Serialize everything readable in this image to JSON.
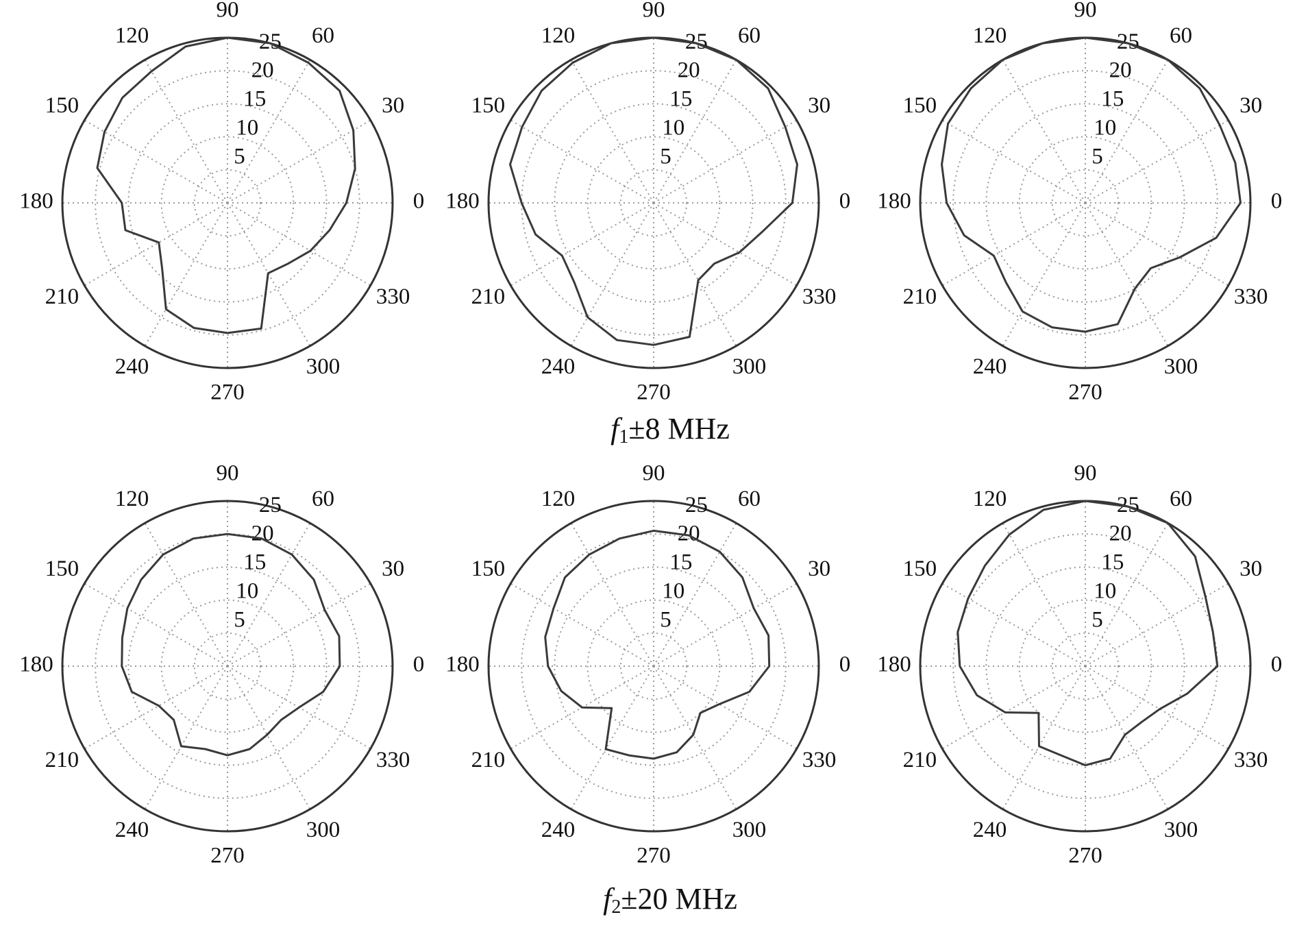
{
  "chart_data": [
    {
      "type": "polar",
      "color": "#3a3a3a",
      "grid": true,
      "rlim": [
        0,
        25
      ],
      "rticks": [
        5,
        10,
        15,
        20,
        25
      ],
      "thetaticks": [
        0,
        30,
        60,
        90,
        120,
        150,
        180,
        210,
        240,
        270,
        300,
        330
      ],
      "theta": [
        0,
        15,
        30,
        45,
        60,
        75,
        90,
        105,
        120,
        135,
        150,
        165,
        180,
        195,
        210,
        225,
        240,
        255,
        270,
        285,
        300,
        315,
        330,
        345
      ],
      "r": [
        18,
        20,
        22,
        24,
        24.5,
        25,
        25,
        24.5,
        23,
        22.5,
        21.5,
        20.4,
        16,
        16,
        12,
        14,
        18.6,
        19.6,
        19.7,
        19.7,
        12.3,
        13,
        14.5,
        16
      ]
    },
    {
      "type": "polar",
      "color": "#3a3a3a",
      "grid": true,
      "rlim": [
        0,
        25
      ],
      "rticks": [
        5,
        10,
        15,
        20,
        25
      ],
      "thetaticks": [
        0,
        30,
        60,
        90,
        120,
        150,
        180,
        210,
        240,
        270,
        300,
        330
      ],
      "theta": [
        0,
        15,
        30,
        45,
        60,
        75,
        90,
        105,
        120,
        135,
        150,
        165,
        180,
        195,
        210,
        225,
        240,
        255,
        270,
        285,
        300,
        315,
        330,
        345
      ],
      "r": [
        21,
        22.5,
        23,
        24.5,
        25,
        25,
        25,
        25,
        24.5,
        24,
        23,
        22.5,
        20,
        18.5,
        16,
        17,
        20,
        21.5,
        21.5,
        21,
        13.5,
        13,
        15,
        17
      ]
    },
    {
      "type": "polar",
      "color": "#3a3a3a",
      "grid": true,
      "rlim": [
        0,
        25
      ],
      "rticks": [
        5,
        10,
        15,
        20,
        25
      ],
      "thetaticks": [
        0,
        30,
        60,
        90,
        120,
        150,
        180,
        210,
        240,
        270,
        300,
        330
      ],
      "theta": [
        0,
        15,
        30,
        45,
        60,
        75,
        90,
        105,
        120,
        135,
        150,
        165,
        180,
        195,
        210,
        225,
        240,
        255,
        270,
        285,
        300,
        315,
        330,
        345
      ],
      "r": [
        23.5,
        23.5,
        23.5,
        24.5,
        25,
        25,
        25,
        25,
        25,
        24.5,
        24,
        22.5,
        21,
        19,
        16,
        17,
        19,
        19.5,
        19.5,
        19,
        15,
        14,
        16.5,
        20.5
      ]
    },
    {
      "type": "polar",
      "color": "#3a3a3a",
      "grid": true,
      "rlim": [
        0,
        25
      ],
      "rticks": [
        5,
        10,
        15,
        20,
        25
      ],
      "thetaticks": [
        0,
        30,
        60,
        90,
        120,
        150,
        180,
        210,
        240,
        270,
        300,
        330
      ],
      "theta": [
        0,
        15,
        30,
        45,
        60,
        75,
        90,
        105,
        120,
        135,
        150,
        165,
        180,
        195,
        210,
        225,
        240,
        255,
        270,
        285,
        300,
        315,
        330,
        345
      ],
      "r": [
        17,
        17.5,
        17,
        18.5,
        19.5,
        20,
        20,
        20,
        19.5,
        18.5,
        17.5,
        16.5,
        16,
        15,
        12,
        11.5,
        14,
        13,
        13.5,
        13,
        12,
        11.5,
        12.5,
        15
      ]
    },
    {
      "type": "polar",
      "color": "#3a3a3a",
      "grid": true,
      "rlim": [
        0,
        25
      ],
      "rticks": [
        5,
        10,
        15,
        20,
        25
      ],
      "thetaticks": [
        0,
        30,
        60,
        90,
        120,
        150,
        180,
        210,
        240,
        270,
        300,
        330
      ],
      "theta": [
        0,
        15,
        30,
        45,
        60,
        75,
        90,
        105,
        120,
        135,
        150,
        165,
        180,
        195,
        210,
        225,
        240,
        255,
        270,
        285,
        300,
        315,
        330,
        345
      ],
      "r": [
        17.5,
        18,
        17.5,
        19,
        20,
        20.5,
        20.5,
        20,
        19.5,
        19,
        17.5,
        17,
        16,
        14.5,
        12.5,
        9,
        14.5,
        14,
        14,
        13.5,
        12,
        10,
        11.5,
        15
      ]
    },
    {
      "type": "polar",
      "color": "#3a3a3a",
      "grid": true,
      "rlim": [
        0,
        25
      ],
      "rticks": [
        5,
        10,
        15,
        20,
        25
      ],
      "thetaticks": [
        0,
        30,
        60,
        90,
        120,
        150,
        180,
        210,
        240,
        270,
        300,
        330
      ],
      "theta": [
        0,
        15,
        30,
        45,
        60,
        75,
        90,
        105,
        120,
        135,
        150,
        165,
        180,
        195,
        210,
        225,
        240,
        255,
        270,
        285,
        300,
        315,
        330,
        345
      ],
      "r": [
        20,
        20,
        21,
        23.5,
        25,
        25,
        25,
        24.5,
        23,
        21.5,
        20.5,
        20,
        19,
        17,
        14,
        10,
        14,
        14,
        15,
        14.5,
        12,
        12,
        13,
        16
      ]
    }
  ],
  "captions": [
    {
      "symbol": "f",
      "subscript": "1",
      "text": "±8 MHz"
    },
    {
      "symbol": "f",
      "subscript": "2",
      "text": "±20 MHz"
    }
  ]
}
